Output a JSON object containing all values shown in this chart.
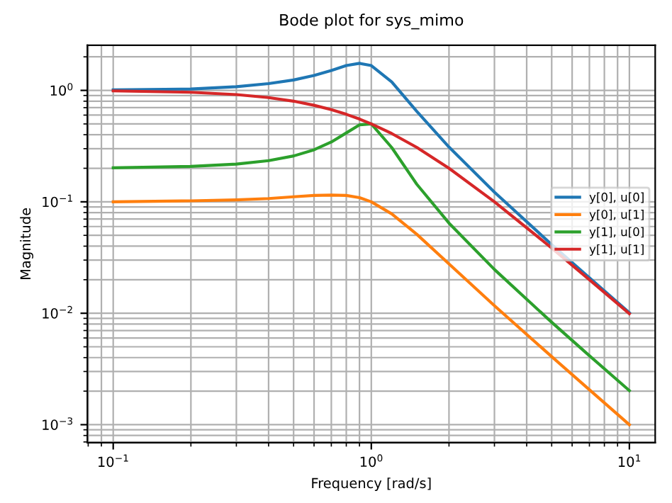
{
  "chart_data": {
    "type": "line",
    "title": "Bode plot for sys_mimo",
    "xlabel": "Frequency [rad/s]",
    "ylabel": "Magnitude",
    "log": "xy",
    "grid": true,
    "legend": "right",
    "x": [
      0.1,
      0.2,
      0.3,
      0.4,
      0.5,
      0.6,
      0.7,
      0.8,
      0.9,
      1.0,
      1.2,
      1.5,
      2,
      3,
      5,
      7,
      10
    ],
    "xlim": [
      0.0794,
      12.59
    ],
    "xticks": [
      {
        "value": 0.1,
        "label": "10$^{−1}$"
      },
      {
        "value": 1,
        "label": "10$^{0}$"
      },
      {
        "value": 10,
        "label": "10$^{1}$"
      }
    ],
    "ylim": [
      0.00069,
      2.54
    ],
    "yticks": [
      {
        "value": 0.001,
        "label": "10$^{−3}$"
      },
      {
        "value": 0.01,
        "label": "10$^{−2}$"
      },
      {
        "value": 0.1,
        "label": "10$^{−1}$"
      },
      {
        "value": 1,
        "label": "10$^{0}$"
      }
    ],
    "series": [
      {
        "name": "y[0], u[0]",
        "color": "#1f77b4",
        "values": [
          1.01,
          1.03,
          1.08,
          1.15,
          1.24,
          1.36,
          1.51,
          1.67,
          1.75,
          1.67,
          1.19,
          0.649,
          0.31,
          0.122,
          0.0413,
          0.0208,
          0.0101
        ]
      },
      {
        "name": "y[0], u[1]",
        "color": "#ff7f0e",
        "values": [
          0.1,
          0.102,
          0.104,
          0.107,
          0.111,
          0.114,
          0.115,
          0.114,
          0.109,
          0.1,
          0.078,
          0.0512,
          0.0277,
          0.0117,
          0.00408,
          0.00206,
          0.001
        ]
      },
      {
        "name": "y[1], u[0]",
        "color": "#2ca02c",
        "values": [
          0.202,
          0.208,
          0.218,
          0.234,
          0.258,
          0.293,
          0.344,
          0.415,
          0.491,
          0.5,
          0.307,
          0.144,
          0.0644,
          0.0247,
          0.0083,
          0.00416,
          0.00202
        ]
      },
      {
        "name": "y[1], u[1]",
        "color": "#d62728",
        "values": [
          0.99,
          0.962,
          0.917,
          0.862,
          0.8,
          0.735,
          0.671,
          0.61,
          0.553,
          0.5,
          0.41,
          0.308,
          0.2,
          0.1,
          0.0385,
          0.02,
          0.0099
        ]
      }
    ]
  }
}
